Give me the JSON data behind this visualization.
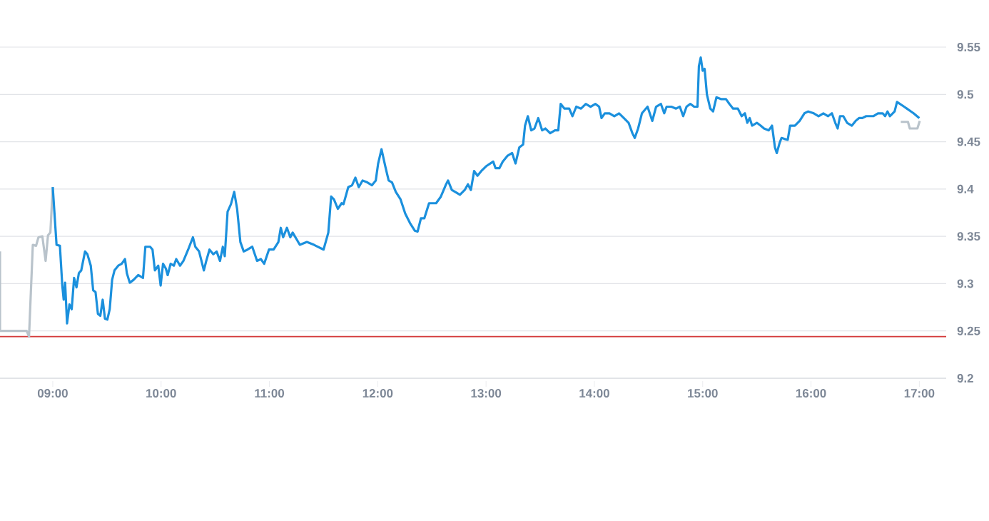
{
  "chart_data": {
    "type": "line",
    "xlim": [
      8.513,
      17.248
    ],
    "ylim": [
      9.2,
      9.55
    ],
    "xticks": [
      {
        "value": 9,
        "label": "09:00"
      },
      {
        "value": 10,
        "label": "10:00"
      },
      {
        "value": 11,
        "label": "11:00"
      },
      {
        "value": 12,
        "label": "12:00"
      },
      {
        "value": 13,
        "label": "13:00"
      },
      {
        "value": 14,
        "label": "14:00"
      },
      {
        "value": 15,
        "label": "15:00"
      },
      {
        "value": 16,
        "label": "16:00"
      },
      {
        "value": 17,
        "label": "17:00"
      }
    ],
    "yticks": [
      9.2,
      9.25,
      9.3,
      9.35,
      9.4,
      9.45,
      9.5,
      9.55
    ],
    "grid": "y",
    "ref_lines": [
      {
        "axis": "y",
        "value": 9.244,
        "color": "#d43a3a"
      }
    ],
    "series": [
      {
        "color": "#b9c3cb",
        "x": [
          8.513,
          8.513,
          8.759,
          8.781,
          8.816,
          8.846,
          8.868,
          8.904,
          8.934,
          8.956,
          8.978,
          9.0
        ],
        "values": [
          9.334,
          9.25,
          9.25,
          9.244,
          9.341,
          9.34,
          9.349,
          9.35,
          9.324,
          9.351,
          9.354,
          9.402
        ]
      },
      {
        "color": "#1b90dd",
        "x": [
          9.0,
          9.035,
          9.066,
          9.088,
          9.101,
          9.114,
          9.132,
          9.154,
          9.175,
          9.197,
          9.219,
          9.241,
          9.263,
          9.298,
          9.32,
          9.351,
          9.373,
          9.395,
          9.417,
          9.439,
          9.461,
          9.482,
          9.504,
          9.526,
          9.548,
          9.57,
          9.605,
          9.636,
          9.667,
          9.684,
          9.711,
          9.746,
          9.789,
          9.833,
          9.855,
          9.899,
          9.921,
          9.943,
          9.974,
          9.996,
          10.018,
          10.044,
          10.061,
          10.088,
          10.118,
          10.14,
          10.175,
          10.206,
          10.25,
          10.294,
          10.316,
          10.351,
          10.395,
          10.417,
          10.447,
          10.482,
          10.513,
          10.544,
          10.57,
          10.588,
          10.614,
          10.645,
          10.675,
          10.702,
          10.732,
          10.763,
          10.798,
          10.842,
          10.886,
          10.921,
          10.952,
          10.996,
          11.039,
          11.083,
          11.105,
          11.127,
          11.162,
          11.193,
          11.215,
          11.281,
          11.346,
          11.412,
          11.5,
          11.544,
          11.57,
          11.596,
          11.632,
          11.667,
          11.684,
          11.728,
          11.763,
          11.794,
          11.825,
          11.86,
          11.904,
          11.947,
          11.982,
          12.004,
          12.035,
          12.07,
          12.101,
          12.132,
          12.167,
          12.211,
          12.254,
          12.298,
          12.342,
          12.368,
          12.399,
          12.43,
          12.474,
          12.539,
          12.583,
          12.627,
          12.649,
          12.684,
          12.715,
          12.759,
          12.803,
          12.833,
          12.86,
          12.89,
          12.921,
          12.956,
          13.0,
          13.066,
          13.088,
          13.123,
          13.154,
          13.197,
          13.241,
          13.272,
          13.307,
          13.342,
          13.36,
          13.386,
          13.417,
          13.447,
          13.482,
          13.518,
          13.548,
          13.592,
          13.636,
          13.667,
          13.689,
          13.724,
          13.768,
          13.798,
          13.833,
          13.877,
          13.921,
          13.965,
          14.009,
          14.044,
          14.066,
          14.096,
          14.14,
          14.184,
          14.228,
          14.272,
          14.316,
          14.351,
          14.373,
          14.404,
          14.439,
          14.491,
          14.535,
          14.57,
          14.614,
          14.645,
          14.667,
          14.702,
          14.711,
          14.754,
          14.789,
          14.82,
          14.851,
          14.886,
          14.921,
          14.952,
          14.965,
          14.982,
          15.0,
          15.018,
          15.039,
          15.07,
          15.096,
          15.127,
          15.171,
          15.215,
          15.246,
          15.281,
          15.325,
          15.36,
          15.39,
          15.412,
          15.434,
          15.456,
          15.5,
          15.535,
          15.566,
          15.61,
          15.64,
          15.667,
          15.684,
          15.711,
          15.728,
          15.754,
          15.785,
          15.807,
          15.851,
          15.895,
          15.939,
          15.974,
          16.026,
          16.07,
          16.114,
          16.158,
          16.193,
          16.224,
          16.246,
          16.268,
          16.298,
          16.333,
          16.377,
          16.412,
          16.443,
          16.474,
          16.509,
          16.575,
          16.618,
          16.662,
          16.684,
          16.706,
          16.728,
          16.772,
          16.794,
          16.86,
          16.947,
          17.0
        ],
        "values": [
          9.402,
          9.341,
          9.34,
          9.298,
          9.283,
          9.301,
          9.258,
          9.278,
          9.273,
          9.306,
          9.296,
          9.311,
          9.314,
          9.334,
          9.331,
          9.319,
          9.293,
          9.291,
          9.268,
          9.266,
          9.283,
          9.263,
          9.262,
          9.273,
          9.304,
          9.314,
          9.319,
          9.321,
          9.326,
          9.311,
          9.301,
          9.304,
          9.309,
          9.306,
          9.339,
          9.339,
          9.336,
          9.314,
          9.319,
          9.298,
          9.321,
          9.316,
          9.309,
          9.321,
          9.319,
          9.326,
          9.319,
          9.324,
          9.336,
          9.349,
          9.339,
          9.334,
          9.314,
          9.324,
          9.336,
          9.331,
          9.334,
          9.324,
          9.339,
          9.329,
          9.376,
          9.384,
          9.397,
          9.379,
          9.344,
          9.334,
          9.336,
          9.339,
          9.324,
          9.326,
          9.321,
          9.336,
          9.336,
          9.344,
          9.359,
          9.349,
          9.359,
          9.349,
          9.354,
          9.341,
          9.344,
          9.341,
          9.336,
          9.354,
          9.392,
          9.389,
          9.379,
          9.385,
          9.384,
          9.402,
          9.404,
          9.412,
          9.402,
          9.409,
          9.407,
          9.404,
          9.409,
          9.427,
          9.442,
          9.424,
          9.409,
          9.407,
          9.397,
          9.389,
          9.374,
          9.364,
          9.356,
          9.355,
          9.369,
          9.369,
          9.385,
          9.385,
          9.392,
          9.404,
          9.409,
          9.399,
          9.397,
          9.394,
          9.399,
          9.405,
          9.399,
          9.419,
          9.414,
          9.419,
          9.424,
          9.429,
          9.422,
          9.422,
          9.429,
          9.435,
          9.438,
          9.427,
          9.444,
          9.447,
          9.467,
          9.477,
          9.462,
          9.464,
          9.475,
          9.462,
          9.464,
          9.459,
          9.462,
          9.462,
          9.49,
          9.485,
          9.485,
          9.477,
          9.487,
          9.485,
          9.49,
          9.487,
          9.49,
          9.487,
          9.475,
          9.48,
          9.48,
          9.477,
          9.48,
          9.475,
          9.47,
          9.459,
          9.454,
          9.464,
          9.48,
          9.487,
          9.472,
          9.487,
          9.49,
          9.48,
          9.487,
          9.487,
          9.487,
          9.485,
          9.487,
          9.477,
          9.487,
          9.49,
          9.487,
          9.487,
          9.53,
          9.539,
          9.525,
          9.527,
          9.5,
          9.485,
          9.482,
          9.497,
          9.495,
          9.495,
          9.49,
          9.485,
          9.485,
          9.477,
          9.48,
          9.47,
          9.475,
          9.467,
          9.47,
          9.467,
          9.464,
          9.462,
          9.467,
          9.444,
          9.438,
          9.449,
          9.454,
          9.453,
          9.452,
          9.467,
          9.467,
          9.472,
          9.48,
          9.482,
          9.48,
          9.477,
          9.48,
          9.477,
          9.48,
          9.47,
          9.464,
          9.477,
          9.477,
          9.47,
          9.467,
          9.472,
          9.475,
          9.475,
          9.477,
          9.477,
          9.48,
          9.48,
          9.477,
          9.482,
          9.477,
          9.482,
          9.492,
          9.487,
          9.48,
          9.475
        ]
      },
      {
        "color": "#b9c3cb",
        "x": [
          16.829,
          16.895,
          16.912,
          16.982,
          17.004
        ],
        "values": [
          9.471,
          9.471,
          9.464,
          9.464,
          9.472
        ]
      }
    ]
  }
}
